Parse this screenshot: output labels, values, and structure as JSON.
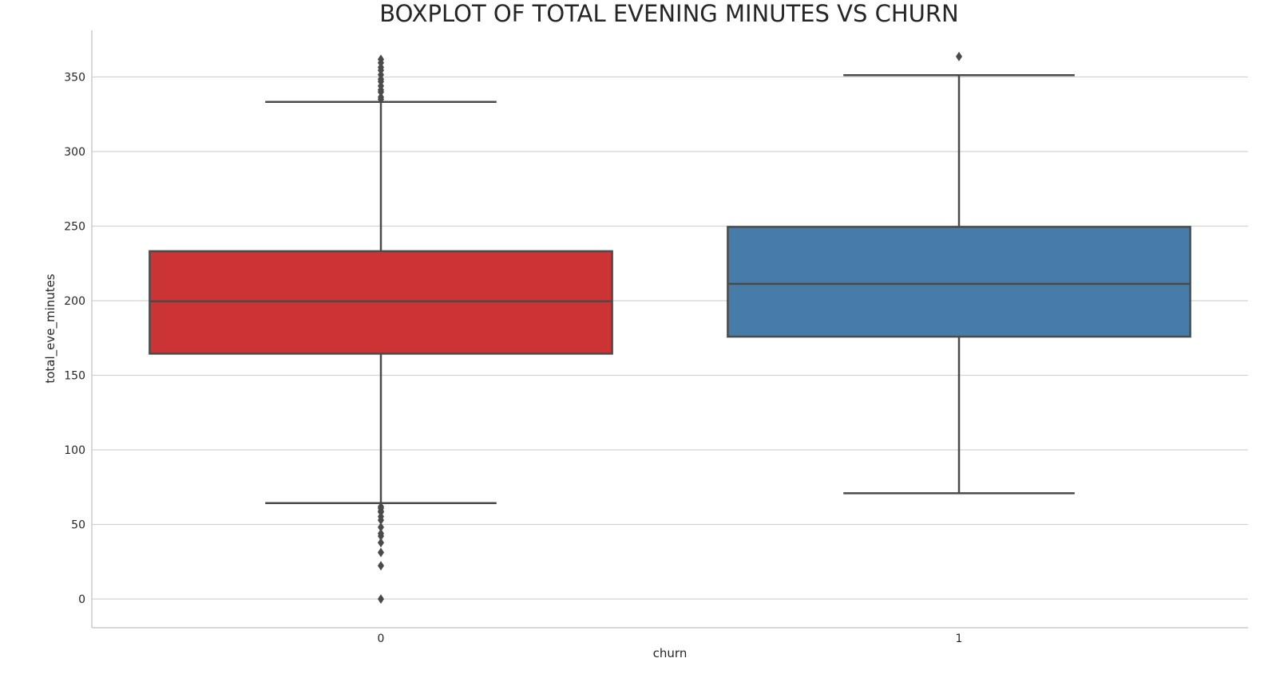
{
  "chart_data": {
    "type": "boxplot",
    "title": "BOXPLOT OF TOTAL EVENING MINUTES VS CHURN",
    "xlabel": "churn",
    "ylabel": "total_eve_minutes",
    "categories": [
      "0",
      "1"
    ],
    "ylim": [
      -18,
      382
    ],
    "yticks": [
      0,
      50,
      100,
      150,
      200,
      250,
      300,
      350
    ],
    "grid": true,
    "boxes": [
      {
        "category": "0",
        "color": "#cb3335",
        "whisker_low": 64.3,
        "q1": 164.5,
        "median": 199.6,
        "q3": 233.2,
        "whisker_high": 333.3,
        "outliers": [
          0,
          22.3,
          31.2,
          37.8,
          42.2,
          43.9,
          48.1,
          52.9,
          55.3,
          58.3,
          58.9,
          60.8,
          61.9,
          335.0,
          336.5,
          339.9,
          341.3,
          344.0,
          346.9,
          348.5,
          351.5,
          354.5,
          356.5,
          359.5,
          361.8
        ]
      },
      {
        "category": "1",
        "color": "#477ca8",
        "whisker_low": 70.9,
        "q1": 175.9,
        "median": 211.3,
        "q3": 249.5,
        "whisker_high": 351.2,
        "outliers": [
          363.7
        ]
      }
    ]
  }
}
